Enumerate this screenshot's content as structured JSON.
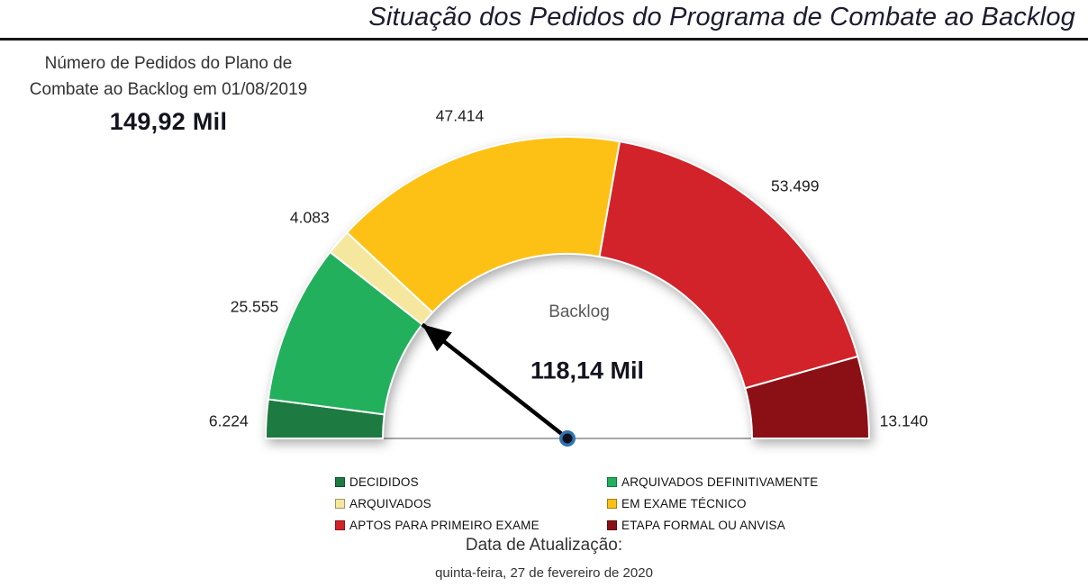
{
  "title": "Situação dos Pedidos do Programa de Combate ao Backlog",
  "info_panel": {
    "label_line1": "Número de Pedidos do Plano de",
    "label_line2": "Combate ao Backlog em 01/08/2019",
    "total_value": "149,92 Mil"
  },
  "chart_data": {
    "type": "gauge",
    "title": "Backlog",
    "needle_value": 118136,
    "needle_value_label": "118,14 Mil",
    "total": 149915,
    "gauge_range_degrees": 180,
    "segments": [
      {
        "name": "DECIDIDOS",
        "value": 6224,
        "value_label": "6.224",
        "color": "#1d7a40"
      },
      {
        "name": "ARQUIVADOS DEFINITIVAMENTE",
        "value": 25555,
        "value_label": "25.555",
        "color": "#22b05c"
      },
      {
        "name": "ARQUIVADOS",
        "value": 4083,
        "value_label": "4.083",
        "color": "#f5e79e"
      },
      {
        "name": "EM EXAME TÉCNICO",
        "value": 47414,
        "value_label": "47.414",
        "color": "#fdc116"
      },
      {
        "name": "APTOS PARA PRIMEIRO EXAME",
        "value": 53499,
        "value_label": "53.499",
        "color": "#d2222a"
      },
      {
        "name": "ETAPA FORMAL OU ANVISA",
        "value": 13140,
        "value_label": "13.140",
        "color": "#8b1016"
      }
    ],
    "needle_color": "#000000",
    "pivot_ring_color": "#2e74b5"
  },
  "footer": {
    "update_label": "Data de Atualização:",
    "update_date": "quinta-feira, 27 de fevereiro de 2020"
  }
}
